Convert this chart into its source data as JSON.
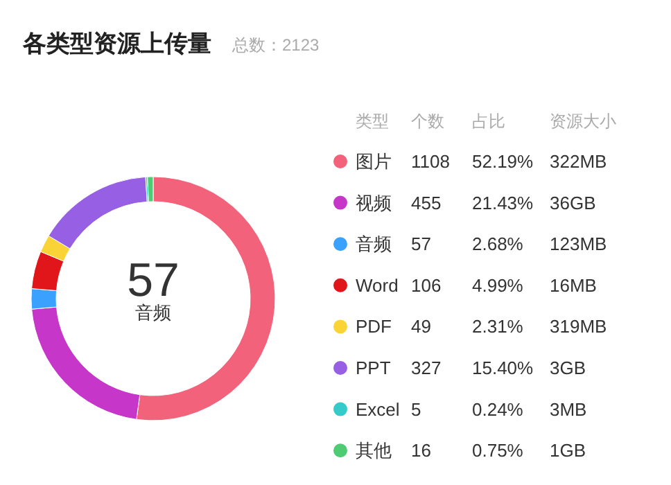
{
  "chart_data": {
    "type": "donut",
    "title": "各类型资源上传量",
    "subtitle": "总数：2123",
    "categories": [
      "图片",
      "视频",
      "音频",
      "Word",
      "PDF",
      "PPT",
      "Excel",
      "其他"
    ],
    "values": [
      1108,
      455,
      57,
      106,
      49,
      327,
      5,
      16
    ],
    "colors": [
      "#f2637b",
      "#c637c9",
      "#3aa1ff",
      "#e0161b",
      "#fad337",
      "#975fe4",
      "#36cbcb",
      "#4ecb73"
    ],
    "data_labels": true,
    "legend": "right",
    "annotations": [
      "类型",
      "个数",
      "占比",
      "资源大小",
      "52.19%",
      "21.43%",
      "2.68%",
      "4.99%",
      "2.31%",
      "15.40%",
      "0.24%",
      "0.75%",
      "322MB",
      "36GB",
      "123MB",
      "16MB",
      "319MB",
      "3GB",
      "3MB",
      "1GB",
      "57",
      "音频"
    ]
  }
}
